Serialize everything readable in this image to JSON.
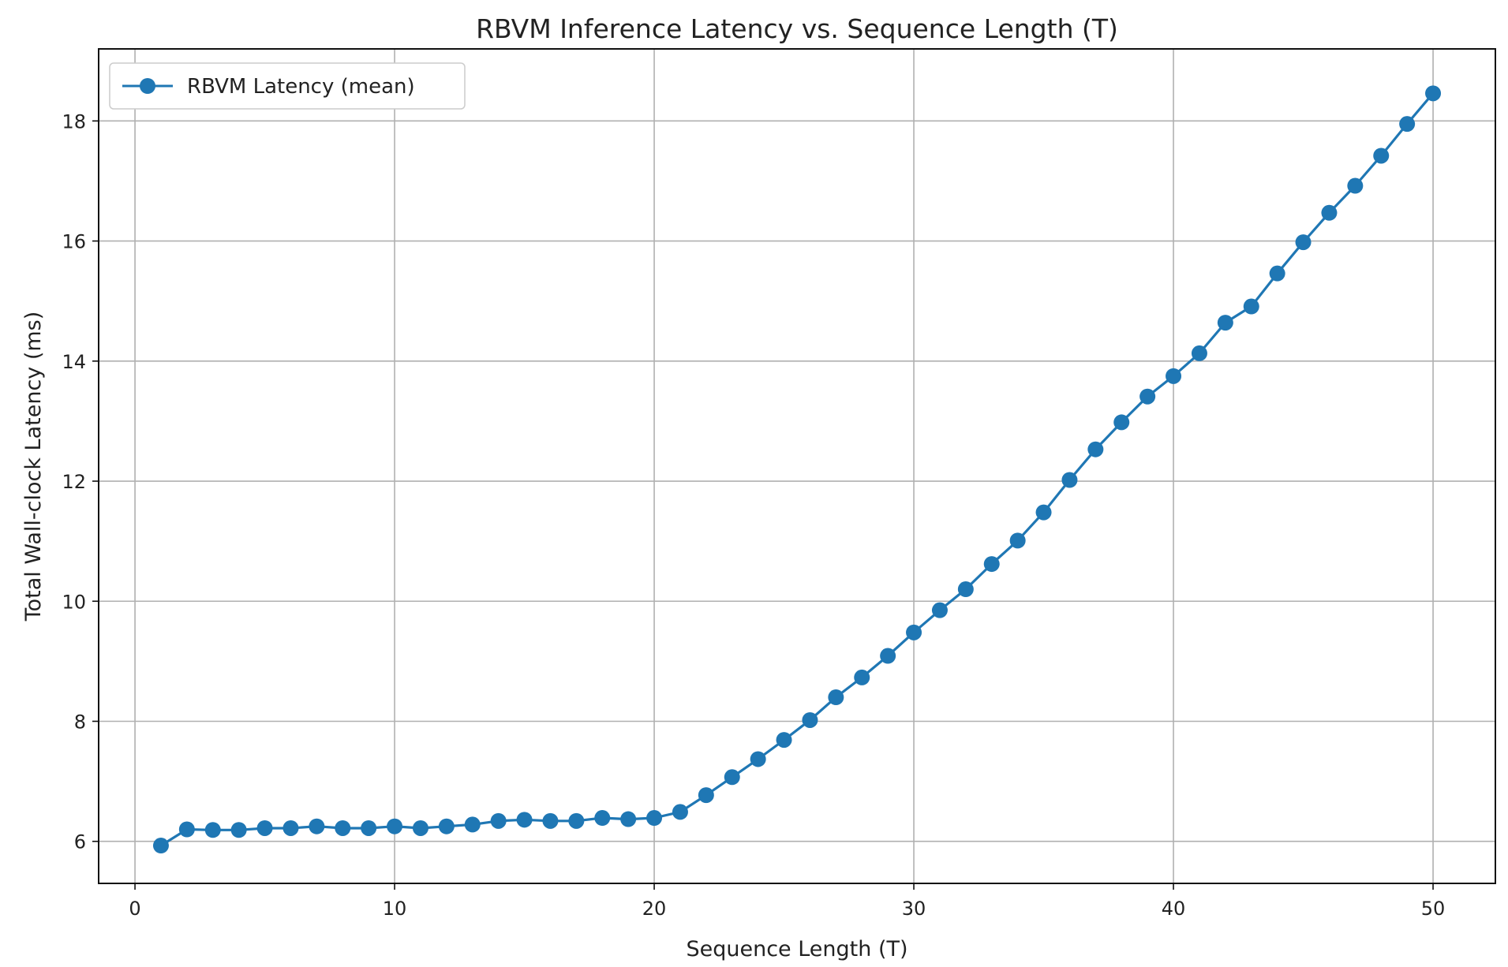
{
  "chart_data": {
    "type": "line",
    "title": "RBVM Inference Latency vs. Sequence Length (T)",
    "xlabel": "Sequence Length (T)",
    "ylabel": "Total Wall-clock Latency (ms)",
    "xlim": [
      -1.4,
      52.4
    ],
    "ylim": [
      5.3,
      19.2
    ],
    "x_ticks": [
      0,
      10,
      20,
      30,
      40,
      50
    ],
    "y_ticks": [
      6,
      8,
      10,
      12,
      14,
      16,
      18
    ],
    "grid": true,
    "legend_position": "upper-left",
    "x": [
      1,
      2,
      3,
      4,
      5,
      6,
      7,
      8,
      9,
      10,
      11,
      12,
      13,
      14,
      15,
      16,
      17,
      18,
      19,
      20,
      21,
      22,
      23,
      24,
      25,
      26,
      27,
      28,
      29,
      30,
      31,
      32,
      33,
      34,
      35,
      36,
      37,
      38,
      39,
      40,
      41,
      42,
      43,
      44,
      45,
      46,
      47,
      48,
      49,
      50
    ],
    "series": [
      {
        "name": "RBVM Latency (mean)",
        "color": "#1f77b4",
        "marker": "circle",
        "values": [
          5.93,
          6.2,
          6.19,
          6.19,
          6.22,
          6.22,
          6.25,
          6.22,
          6.22,
          6.25,
          6.22,
          6.25,
          6.28,
          6.34,
          6.36,
          6.34,
          6.34,
          6.39,
          6.37,
          6.39,
          6.49,
          6.77,
          7.07,
          7.37,
          7.69,
          8.02,
          8.4,
          8.73,
          9.09,
          9.48,
          9.85,
          10.2,
          10.62,
          11.01,
          11.48,
          12.02,
          12.53,
          12.98,
          13.41,
          13.75,
          14.13,
          14.64,
          14.91,
          15.46,
          15.98,
          16.47,
          16.92,
          17.42,
          17.95,
          18.46
        ]
      }
    ]
  }
}
